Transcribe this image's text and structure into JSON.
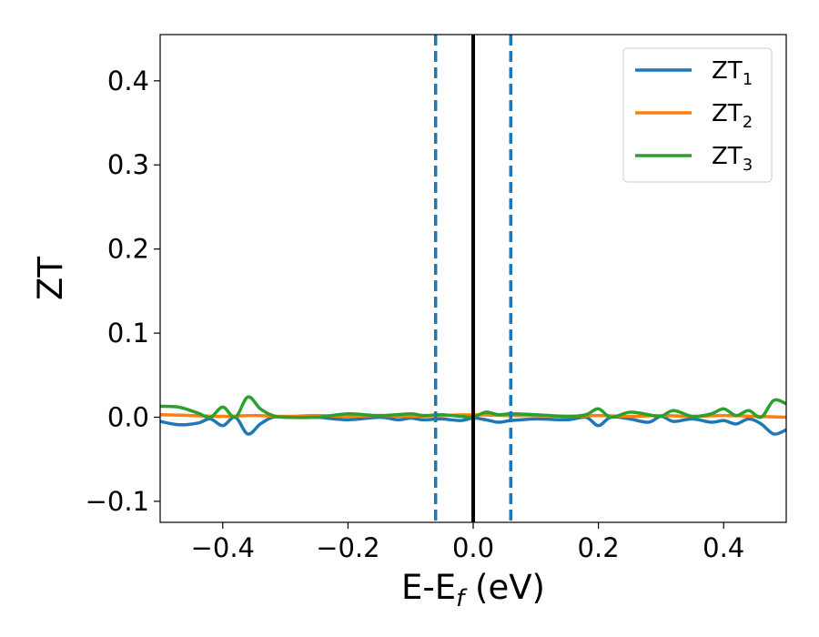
{
  "chart_data": {
    "type": "line",
    "xlabel": {
      "main": "E-E",
      "sub": "f",
      "rest": " (eV)"
    },
    "ylabel": "ZT",
    "xlim": [
      -0.5,
      0.5
    ],
    "ylim": [
      -0.125,
      0.455
    ],
    "xticks": [
      -0.4,
      -0.2,
      0.0,
      0.2,
      0.4
    ],
    "xtick_labels": [
      "−0.4",
      "−0.2",
      "0.0",
      "0.2",
      "0.4"
    ],
    "yticks": [
      -0.1,
      0.0,
      0.1,
      0.2,
      0.3,
      0.4
    ],
    "ytick_labels": [
      "−0.1",
      "0.0",
      "0.1",
      "0.2",
      "0.3",
      "0.4"
    ],
    "grid": false,
    "legend_position": "top-right",
    "vlines": [
      {
        "x": 0.0,
        "style": "solid",
        "color": "#000000"
      },
      {
        "x": -0.06,
        "style": "dashed",
        "color": "#1f77b4"
      },
      {
        "x": 0.06,
        "style": "dashed",
        "color": "#1f77b4"
      }
    ],
    "series": [
      {
        "name": "ZT",
        "sub": "1",
        "color": "#1f77b4",
        "x": [
          -0.5,
          -0.47,
          -0.44,
          -0.42,
          -0.4,
          -0.38,
          -0.36,
          -0.34,
          -0.32,
          -0.3,
          -0.25,
          -0.2,
          -0.15,
          -0.12,
          -0.1,
          -0.08,
          -0.05,
          -0.02,
          0.0,
          0.02,
          0.04,
          0.06,
          0.1,
          0.15,
          0.18,
          0.2,
          0.22,
          0.25,
          0.28,
          0.3,
          0.32,
          0.35,
          0.38,
          0.4,
          0.42,
          0.44,
          0.46,
          0.48,
          0.5
        ],
        "y": [
          -0.005,
          -0.009,
          -0.007,
          -0.002,
          -0.01,
          0.0,
          -0.02,
          -0.008,
          0.0,
          0.0,
          0.0,
          -0.003,
          0.0,
          -0.003,
          -0.001,
          -0.003,
          -0.002,
          -0.004,
          -0.001,
          -0.003,
          -0.006,
          -0.004,
          -0.002,
          -0.003,
          0.0,
          -0.01,
          0.0,
          -0.002,
          -0.006,
          0.001,
          -0.005,
          -0.002,
          -0.006,
          -0.004,
          -0.008,
          -0.002,
          -0.008,
          -0.02,
          -0.015
        ]
      },
      {
        "name": "ZT",
        "sub": "2",
        "color": "#ff7f0e",
        "x": [
          -0.5,
          -0.45,
          -0.4,
          -0.35,
          -0.3,
          -0.25,
          -0.2,
          -0.15,
          -0.1,
          -0.05,
          0.0,
          0.05,
          0.1,
          0.15,
          0.2,
          0.25,
          0.3,
          0.35,
          0.4,
          0.45,
          0.5
        ],
        "y": [
          0.003,
          0.002,
          0.001,
          0.002,
          0.001,
          0.002,
          0.001,
          0.002,
          0.001,
          0.002,
          0.003,
          0.002,
          0.002,
          0.001,
          0.002,
          0.001,
          0.002,
          0.001,
          0.002,
          0.001,
          0.0
        ]
      },
      {
        "name": "ZT",
        "sub": "3",
        "color": "#2ca02c",
        "x": [
          -0.5,
          -0.47,
          -0.44,
          -0.42,
          -0.4,
          -0.38,
          -0.36,
          -0.34,
          -0.32,
          -0.3,
          -0.25,
          -0.2,
          -0.15,
          -0.1,
          -0.08,
          -0.05,
          -0.02,
          0.0,
          0.02,
          0.04,
          0.06,
          0.1,
          0.15,
          0.18,
          0.2,
          0.22,
          0.25,
          0.28,
          0.3,
          0.32,
          0.35,
          0.38,
          0.4,
          0.42,
          0.44,
          0.46,
          0.48,
          0.5
        ],
        "y": [
          0.013,
          0.012,
          0.005,
          0.0,
          0.012,
          0.0,
          0.024,
          0.01,
          0.002,
          0.0,
          0.0,
          0.004,
          0.002,
          0.004,
          0.002,
          0.003,
          0.001,
          0.0,
          0.006,
          0.003,
          0.004,
          0.003,
          0.001,
          0.003,
          0.01,
          0.0,
          0.006,
          0.003,
          0.001,
          0.008,
          0.001,
          0.004,
          0.01,
          0.002,
          0.008,
          0.0,
          0.02,
          0.016
        ]
      }
    ]
  }
}
